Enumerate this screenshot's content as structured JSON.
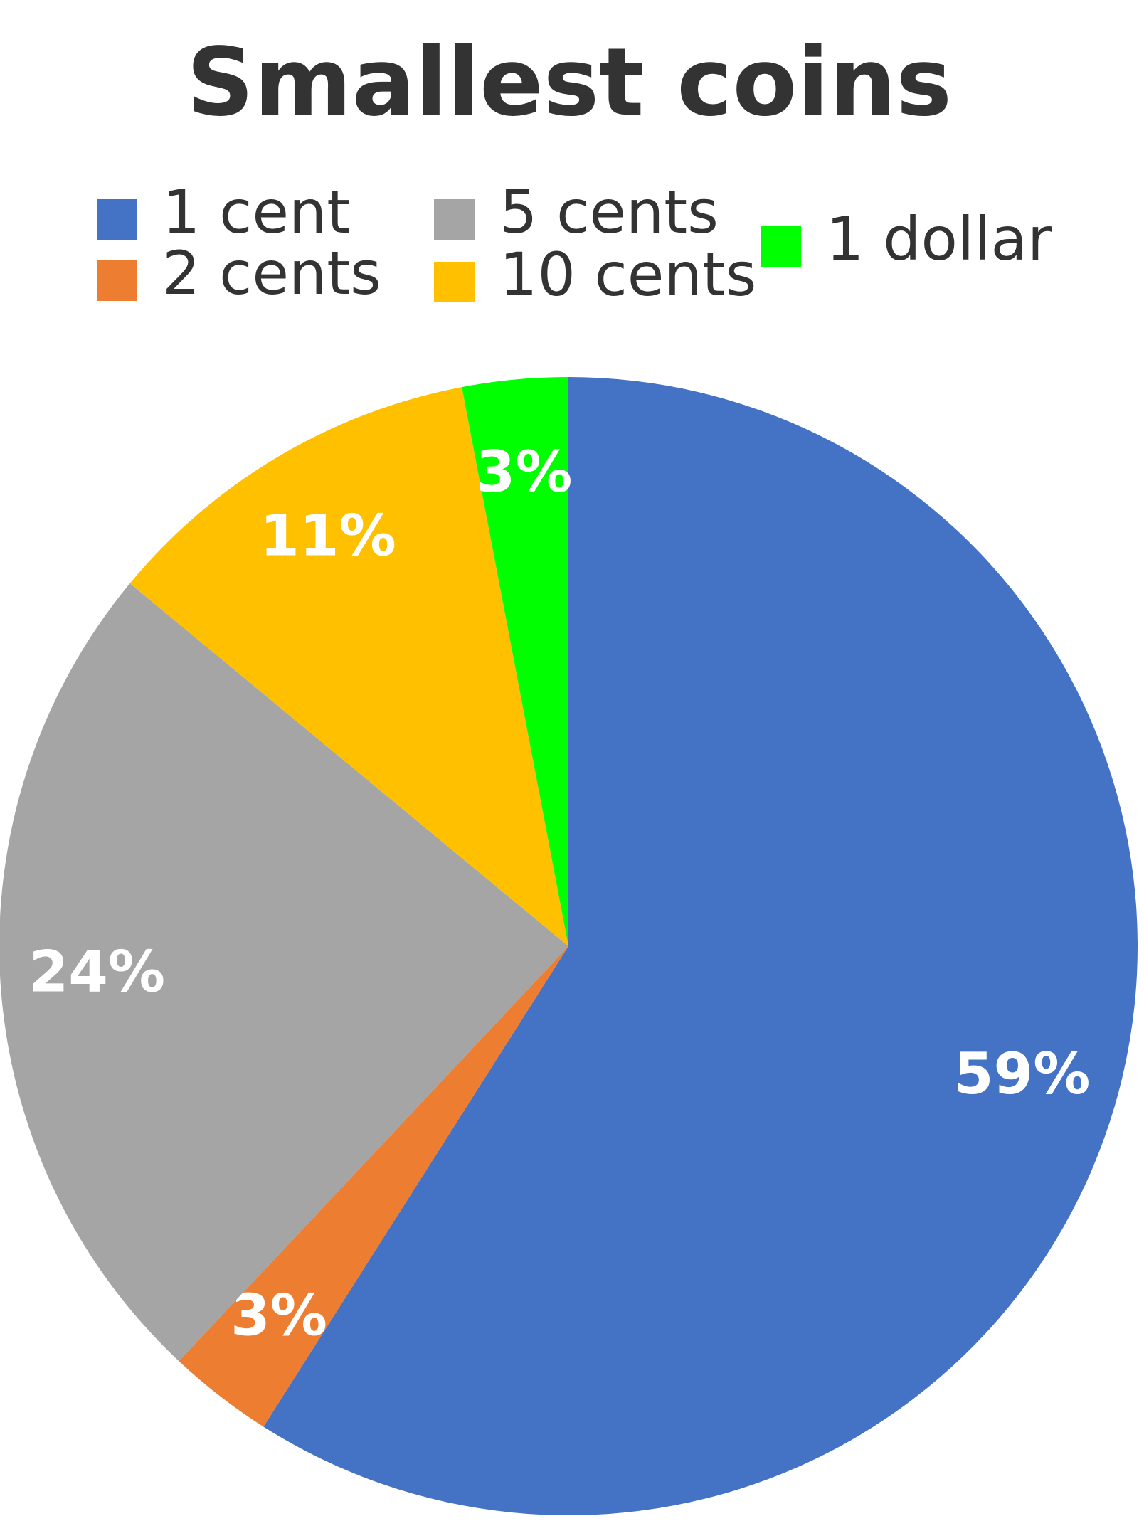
{
  "chart_data": {
    "type": "pie",
    "title": "Smallest coins",
    "categories": [
      "1 cent",
      "2 cents",
      "5 cents",
      "10 cents",
      "1 dollar"
    ],
    "values": [
      59,
      3,
      24,
      11,
      3
    ],
    "value_labels": [
      "59%",
      "3%",
      "24%",
      "11%",
      "3%"
    ],
    "colors": [
      "#4472c4",
      "#ed7d31",
      "#a5a5a5",
      "#ffc000",
      "#00ff00"
    ],
    "legend": "top"
  }
}
